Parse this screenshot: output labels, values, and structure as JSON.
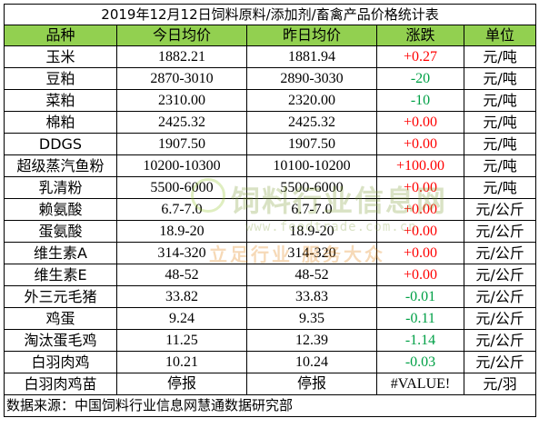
{
  "title": "2019年12月12日饲料原料/添加剂/畜禽产品价格统计表",
  "headers": {
    "name": "品种",
    "today": "今日均价",
    "yesterday": "昨日均价",
    "change": "涨跌",
    "unit": "单位"
  },
  "rows": [
    {
      "name": "玉米",
      "today": "1882.21",
      "yesterday": "1881.94",
      "change": "+0.27",
      "dir": "pos",
      "unit": "元/吨"
    },
    {
      "name": "豆粕",
      "today": "2870-3010",
      "yesterday": "2890-3030",
      "change": "-20",
      "dir": "neg",
      "unit": "元/吨"
    },
    {
      "name": "菜粕",
      "today": "2310.00",
      "yesterday": "2320.00",
      "change": "-10",
      "dir": "neg",
      "unit": "元/吨"
    },
    {
      "name": "棉粕",
      "today": "2425.32",
      "yesterday": "2425.32",
      "change": "+0.00",
      "dir": "pos",
      "unit": "元/吨"
    },
    {
      "name": "DDGS",
      "today": "1907.50",
      "yesterday": "1907.50",
      "change": "+0.00",
      "dir": "pos",
      "unit": "元/吨"
    },
    {
      "name": "超级蒸汽鱼粉",
      "today": "10200-10300",
      "yesterday": "10100-10200",
      "change": "+100.00",
      "dir": "pos",
      "unit": "元/吨"
    },
    {
      "name": "乳清粉",
      "today": "5500-6000",
      "yesterday": "5500-6000",
      "change": "+0.00",
      "dir": "pos",
      "unit": "元/吨"
    },
    {
      "name": "赖氨酸",
      "today": "6.7-7.0",
      "yesterday": "6.7-7.0",
      "change": "+0.00",
      "dir": "pos",
      "unit": "元/公斤"
    },
    {
      "name": "蛋氨酸",
      "today": "18.9-20",
      "yesterday": "18.9-20",
      "change": "+0.00",
      "dir": "pos",
      "unit": "元/公斤"
    },
    {
      "name": "维生素A",
      "today": "314-320",
      "yesterday": "314-320",
      "change": "+0.00",
      "dir": "pos",
      "unit": "元/公斤"
    },
    {
      "name": "维生素E",
      "today": "48-52",
      "yesterday": "48-52",
      "change": "+0.00",
      "dir": "pos",
      "unit": "元/公斤"
    },
    {
      "name": "外三元毛猪",
      "today": "33.82",
      "yesterday": "33.83",
      "change": "-0.01",
      "dir": "neg",
      "unit": "元/公斤"
    },
    {
      "name": "鸡蛋",
      "today": "9.24",
      "yesterday": "9.35",
      "change": "-0.11",
      "dir": "neg",
      "unit": "元/公斤"
    },
    {
      "name": "淘汰蛋毛鸡",
      "today": "11.25",
      "yesterday": "12.39",
      "change": "-1.14",
      "dir": "neg",
      "unit": "元/公斤"
    },
    {
      "name": "白羽肉鸡",
      "today": "10.21",
      "yesterday": "10.24",
      "change": "-0.03",
      "dir": "neg",
      "unit": "元/公斤"
    },
    {
      "name": "白羽肉鸡苗",
      "today": "停报",
      "yesterday": "停报",
      "change": "#VALUE!",
      "dir": "err",
      "unit": "元/羽"
    }
  ],
  "source": "数据来源：中国饲料行业信息网慧通数据研究部",
  "watermark": {
    "main": "饲料行业信息网",
    "url": "www.feedtrade.com.cn",
    "slogan": "立足行业  服务大众"
  }
}
